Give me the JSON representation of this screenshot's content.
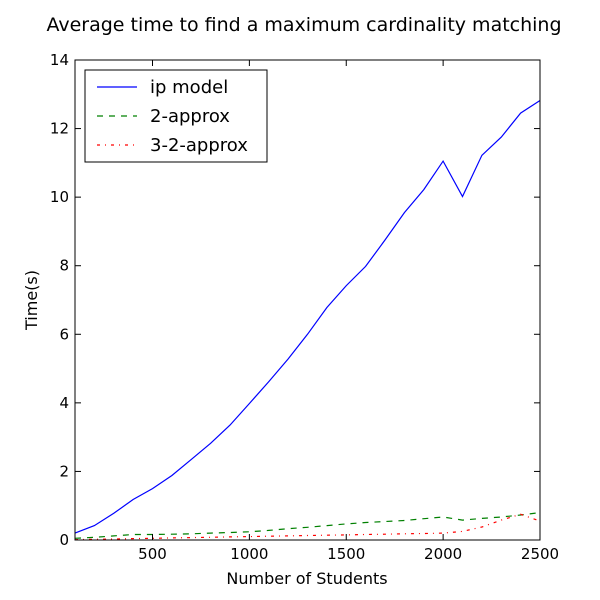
{
  "chart_data": {
    "type": "line",
    "title": "Average time to find a maximum cardinality matching",
    "xlabel": "Number of Students",
    "ylabel": "Time(s)",
    "xlim": [
      100,
      2500
    ],
    "ylim": [
      0,
      14
    ],
    "xticks": [
      500,
      1000,
      1500,
      2000,
      2500
    ],
    "yticks": [
      0,
      2,
      4,
      6,
      8,
      10,
      12,
      14
    ],
    "grid": false,
    "legend_position": "top-left",
    "x": [
      100,
      200,
      300,
      400,
      500,
      600,
      700,
      800,
      900,
      1000,
      1100,
      1200,
      1300,
      1400,
      1500,
      1600,
      1700,
      1800,
      1900,
      2000,
      2100,
      2200,
      2300,
      2400,
      2500
    ],
    "series": [
      {
        "name": "ip model",
        "color": "#0000ff",
        "style": "solid",
        "values": [
          0.2,
          0.42,
          0.78,
          1.18,
          1.5,
          1.88,
          2.35,
          2.82,
          3.35,
          3.98,
          4.62,
          5.28,
          6.0,
          6.78,
          7.42,
          7.98,
          8.75,
          9.55,
          10.22,
          11.05,
          10.02,
          11.22,
          11.75,
          12.45,
          12.82
        ]
      },
      {
        "name": "2-approx",
        "color": "#008000",
        "style": "dashed",
        "values": [
          0.05,
          0.08,
          0.12,
          0.16,
          0.16,
          0.17,
          0.18,
          0.2,
          0.22,
          0.24,
          0.28,
          0.33,
          0.37,
          0.42,
          0.47,
          0.51,
          0.54,
          0.57,
          0.62,
          0.67,
          0.58,
          0.63,
          0.67,
          0.73,
          0.8
        ]
      },
      {
        "name": "3-2-approx",
        "color": "#ff0000",
        "style": "dashdot",
        "values": [
          0.01,
          0.02,
          0.03,
          0.04,
          0.05,
          0.06,
          0.07,
          0.08,
          0.09,
          0.1,
          0.11,
          0.12,
          0.13,
          0.14,
          0.15,
          0.16,
          0.17,
          0.18,
          0.19,
          0.2,
          0.25,
          0.38,
          0.58,
          0.75,
          0.55
        ]
      }
    ]
  }
}
